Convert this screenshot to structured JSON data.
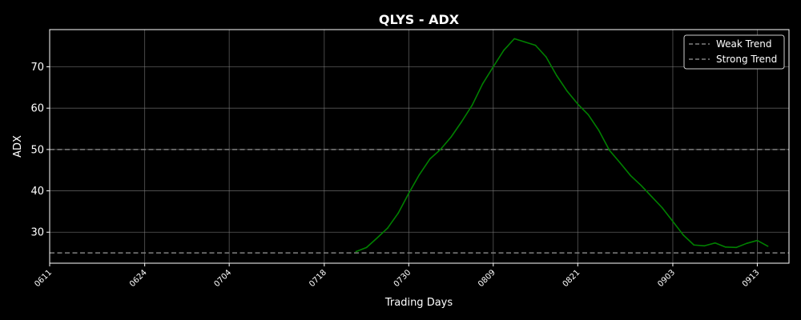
{
  "chart_data": {
    "type": "line",
    "title": "QLYS - ADX",
    "xlabel": "Trading Days",
    "ylabel": "ADX",
    "x_ticks": [
      "0611",
      "0624",
      "0704",
      "0718",
      "0730",
      "0809",
      "0821",
      "0903",
      "0913"
    ],
    "x_tick_positions": [
      0,
      9,
      17,
      26,
      34,
      42,
      50,
      59,
      67
    ],
    "x_range": [
      0,
      70
    ],
    "y_ticks": [
      30,
      40,
      50,
      60,
      70
    ],
    "ylim": [
      22.5,
      79
    ],
    "grid": true,
    "legend_position": "top-right",
    "series": [
      {
        "values": [
          [
            29,
            25.3
          ],
          [
            30,
            26.3
          ],
          [
            31,
            28.6
          ],
          [
            32,
            31.0
          ],
          [
            33,
            34.6
          ],
          [
            34,
            39.4
          ],
          [
            35,
            43.9
          ],
          [
            36,
            47.7
          ],
          [
            37,
            50.0
          ],
          [
            38,
            53.0
          ],
          [
            39,
            56.7
          ],
          [
            40,
            60.7
          ],
          [
            41,
            65.9
          ],
          [
            42,
            70.0
          ],
          [
            43,
            74.0
          ],
          [
            44,
            76.8
          ],
          [
            45,
            76.0
          ],
          [
            46,
            75.2
          ],
          [
            47,
            72.4
          ],
          [
            48,
            67.9
          ],
          [
            49,
            64.1
          ],
          [
            50,
            61.0
          ],
          [
            51,
            58.4
          ],
          [
            52,
            54.6
          ],
          [
            53,
            49.8
          ],
          [
            54,
            46.8
          ],
          [
            55,
            43.7
          ],
          [
            56,
            41.3
          ],
          [
            57,
            38.6
          ],
          [
            58,
            35.9
          ],
          [
            59,
            32.6
          ],
          [
            60,
            29.3
          ],
          [
            61,
            26.9
          ],
          [
            62,
            26.7
          ],
          [
            63,
            27.4
          ],
          [
            64,
            26.4
          ],
          [
            65,
            26.3
          ],
          [
            66,
            27.3
          ],
          [
            67,
            28.0
          ],
          [
            68,
            26.6
          ]
        ],
        "color": "#008000"
      }
    ],
    "reference_lines": [
      {
        "name": "Weak Trend",
        "value": 25,
        "color": "#808080"
      },
      {
        "name": "Strong Trend",
        "value": 50,
        "color": "#808080"
      }
    ],
    "colors": {
      "background": "#000000",
      "text": "#ffffff",
      "grid": "#808080",
      "reference": "#808080",
      "line": "#008000"
    }
  }
}
